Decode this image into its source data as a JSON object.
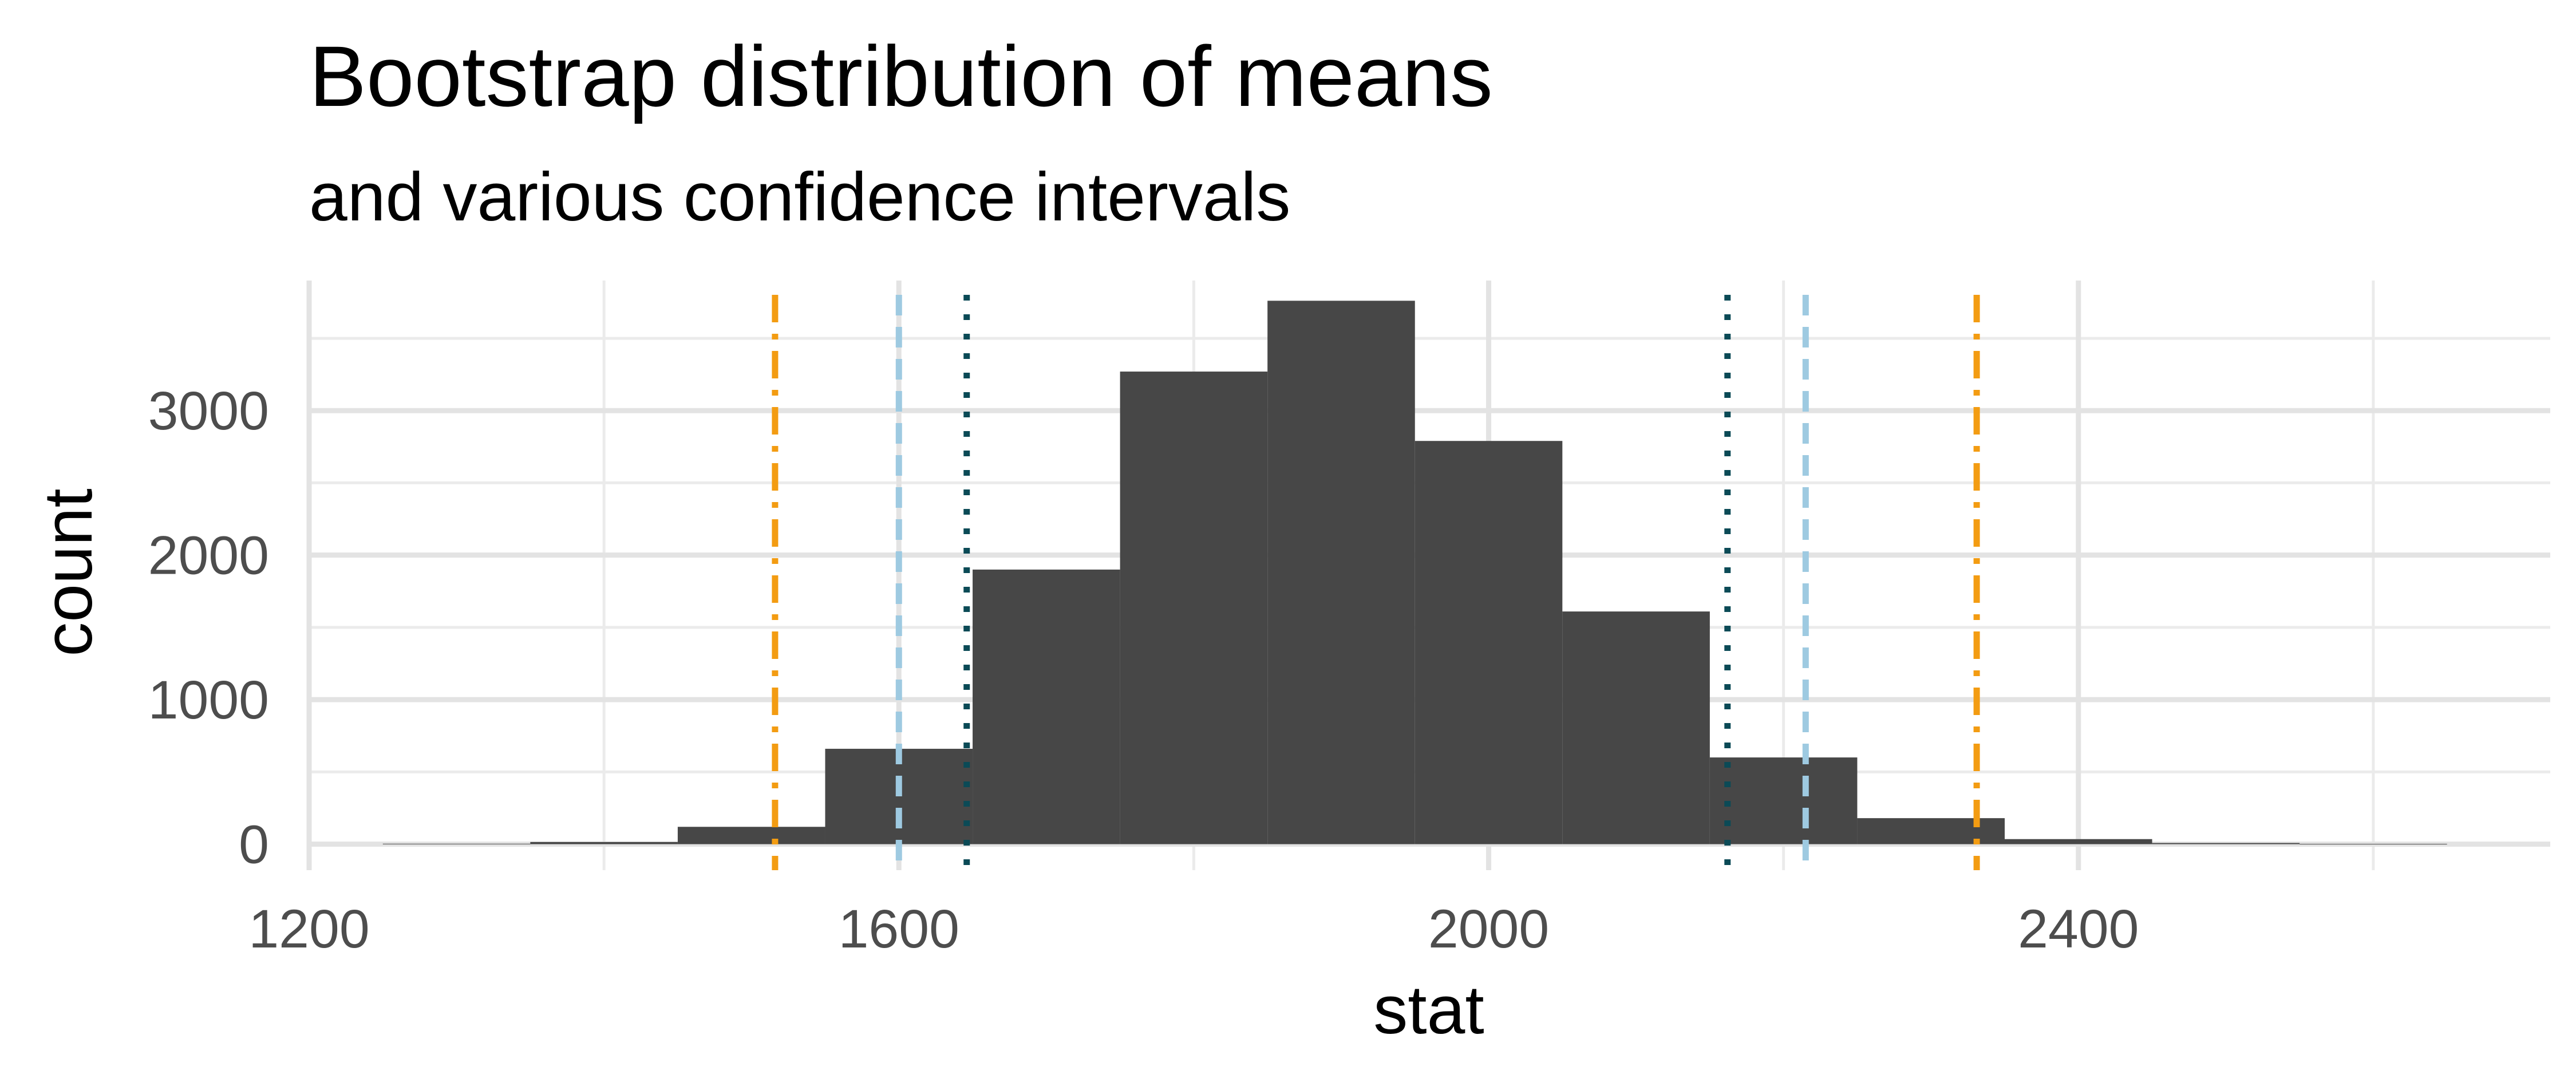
{
  "chart_data": {
    "type": "bar",
    "title": "Bootstrap distribution of means",
    "subtitle": "and various confidence intervals",
    "xlabel": "stat",
    "ylabel": "count",
    "xlim": [
      1200,
      2720
    ],
    "ylim": [
      -180,
      3900
    ],
    "x_ticks": [
      1200,
      1600,
      2000,
      2400
    ],
    "x_minor_ticks": [
      1400,
      1800,
      2200,
      2600
    ],
    "y_ticks": [
      0,
      1000,
      2000,
      3000
    ],
    "y_minor_ticks": [
      500,
      1500,
      2500,
      3500
    ],
    "grid": true,
    "bin_width": 100,
    "bins": [
      {
        "x": 1300,
        "count": 3
      },
      {
        "x": 1400,
        "count": 15
      },
      {
        "x": 1500,
        "count": 120
      },
      {
        "x": 1600,
        "count": 660
      },
      {
        "x": 1700,
        "count": 1900
      },
      {
        "x": 1800,
        "count": 3270
      },
      {
        "x": 1900,
        "count": 3760
      },
      {
        "x": 2000,
        "count": 2790
      },
      {
        "x": 2100,
        "count": 1610
      },
      {
        "x": 2200,
        "count": 600
      },
      {
        "x": 2300,
        "count": 180
      },
      {
        "x": 2400,
        "count": 35
      },
      {
        "x": 2500,
        "count": 8
      },
      {
        "x": 2600,
        "count": 2
      }
    ],
    "bar_color": "#474747",
    "ci_lines": [
      {
        "style": "dotdash",
        "color": "#F39C12",
        "bounds": [
          1516,
          2331
        ]
      },
      {
        "style": "dashed",
        "color": "#9ECAE1",
        "bounds": [
          1600,
          2215
        ]
      },
      {
        "style": "dotted",
        "color": "#0B4A56",
        "bounds": [
          1646,
          2162
        ]
      }
    ]
  }
}
